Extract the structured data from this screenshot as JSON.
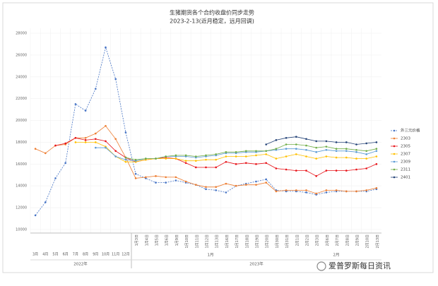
{
  "chart_data": {
    "type": "line",
    "title": "生猪期货各个合约收盘价同步走势",
    "subtitle": "2023-2-13(近月稳定，远月回调)",
    "categories": [
      "3月",
      "4月",
      "5月",
      "6月",
      "7月",
      "8月",
      "9月",
      "10月",
      "11月",
      "12月",
      "1月3日",
      "1月4日",
      "1月5日",
      "1月6日",
      "1月9日",
      "1月10日",
      "1月11日",
      "1月12日",
      "1月13日",
      "1月16日",
      "1月17日",
      "1月18日",
      "1月19日",
      "1月20日",
      "1月30日",
      "1月31日",
      "2月1日",
      "2月2日",
      "2月3日",
      "2月6日",
      "2月7日",
      "2月8日",
      "2月9日",
      "2月10日",
      "2月13日"
    ],
    "x_group_labels": [
      "2022年",
      "1月",
      "2月",
      "2023年"
    ],
    "ylim": [
      10000,
      28000
    ],
    "yticks": [
      10000,
      12000,
      14000,
      16000,
      18000,
      20000,
      22000,
      24000,
      26000,
      28000
    ],
    "grid": true,
    "legend": "right",
    "series": [
      {
        "name": "外三元价格",
        "color": "#4472c4",
        "line_style": "dashed",
        "values": [
          11300,
          12500,
          14700,
          16100,
          21500,
          20900,
          22900,
          26700,
          23800,
          18900,
          15100,
          14700,
          14300,
          14300,
          14500,
          14300,
          14100,
          13700,
          13600,
          13400,
          14000,
          14200,
          14400,
          14600,
          13600,
          13500,
          13500,
          13400,
          13200,
          13400,
          13500,
          13500,
          13500,
          13500,
          13700
        ]
      },
      {
        "name": "2303",
        "color": "#ed7d31",
        "line_style": "solid",
        "values": [
          17400,
          17000,
          17700,
          17800,
          18400,
          18400,
          18800,
          19500,
          18300,
          16600,
          14700,
          14800,
          14900,
          14800,
          14800,
          14400,
          14100,
          13900,
          13900,
          14200,
          14000,
          14100,
          14100,
          14300,
          13500,
          13600,
          13600,
          13600,
          13300,
          13600,
          13600,
          13500,
          13500,
          13600,
          13800
        ]
      },
      {
        "name": "2305",
        "color": "#e8141a",
        "line_style": "solid",
        "values": [
          null,
          null,
          17700,
          17900,
          18400,
          18200,
          18300,
          18100,
          17200,
          16600,
          16200,
          16400,
          16500,
          16600,
          16500,
          16100,
          15700,
          15700,
          15700,
          16200,
          16000,
          16100,
          16000,
          16100,
          15600,
          15500,
          15400,
          15400,
          14900,
          15400,
          15400,
          15400,
          15500,
          15600,
          16000
        ]
      },
      {
        "name": "2307",
        "color": "#ffc000",
        "line_style": "solid",
        "values": [
          null,
          null,
          null,
          null,
          18000,
          18000,
          18000,
          17600,
          16700,
          16200,
          16200,
          16400,
          16500,
          16500,
          16500,
          16300,
          16300,
          16400,
          16400,
          16700,
          16700,
          16700,
          16800,
          16900,
          16500,
          16700,
          16900,
          16700,
          16500,
          16700,
          16600,
          16600,
          16500,
          16500,
          16700
        ]
      },
      {
        "name": "2309",
        "color": "#5b9bd5",
        "line_style": "solid",
        "values": [
          null,
          null,
          null,
          null,
          null,
          null,
          17500,
          17500,
          16700,
          16400,
          16300,
          16500,
          16500,
          16700,
          16700,
          16700,
          16600,
          16700,
          16800,
          17000,
          17000,
          17100,
          17100,
          17200,
          17300,
          17400,
          17400,
          17300,
          17100,
          17300,
          17200,
          17200,
          17100,
          16900,
          17200
        ]
      },
      {
        "name": "2311",
        "color": "#70ad47",
        "line_style": "solid",
        "values": [
          null,
          null,
          null,
          null,
          null,
          null,
          null,
          null,
          null,
          16600,
          16400,
          16500,
          16500,
          16700,
          16800,
          16800,
          16700,
          16800,
          16900,
          17100,
          17100,
          17200,
          17200,
          17200,
          17400,
          17800,
          17800,
          17700,
          17500,
          17600,
          17400,
          17400,
          17300,
          17200,
          17400
        ]
      },
      {
        "name": "2401",
        "color": "#264478",
        "line_style": "solid",
        "values": [
          null,
          null,
          null,
          null,
          null,
          null,
          null,
          null,
          null,
          null,
          null,
          null,
          null,
          null,
          null,
          null,
          null,
          null,
          null,
          null,
          null,
          null,
          null,
          17800,
          18200,
          18400,
          18500,
          18300,
          18100,
          18100,
          18000,
          18000,
          17800,
          17900,
          18000
        ]
      }
    ]
  },
  "watermark": "爱普罗斯每日资讯"
}
